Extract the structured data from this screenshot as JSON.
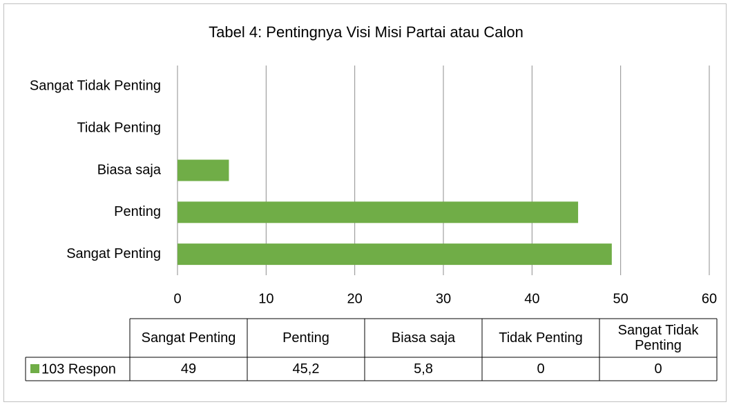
{
  "chart_data": {
    "type": "bar",
    "orientation": "horizontal",
    "title": "Tabel 4: Pentingnya Visi Misi Partai atau Calon",
    "categories": [
      "Sangat Penting",
      "Penting",
      "Biasa saja",
      "Tidak Penting",
      "Sangat Tidak Penting"
    ],
    "series": [
      {
        "name": "103 Respon",
        "color": "#70ad47",
        "values": [
          49,
          45.2,
          5.8,
          0,
          0
        ],
        "value_labels": [
          "49",
          "45,2",
          "5,8",
          "0",
          "0"
        ]
      }
    ],
    "xlim": [
      0,
      60
    ],
    "xticks": [
      0,
      10,
      20,
      30,
      40,
      50,
      60
    ],
    "grid": true,
    "data_table": true
  }
}
